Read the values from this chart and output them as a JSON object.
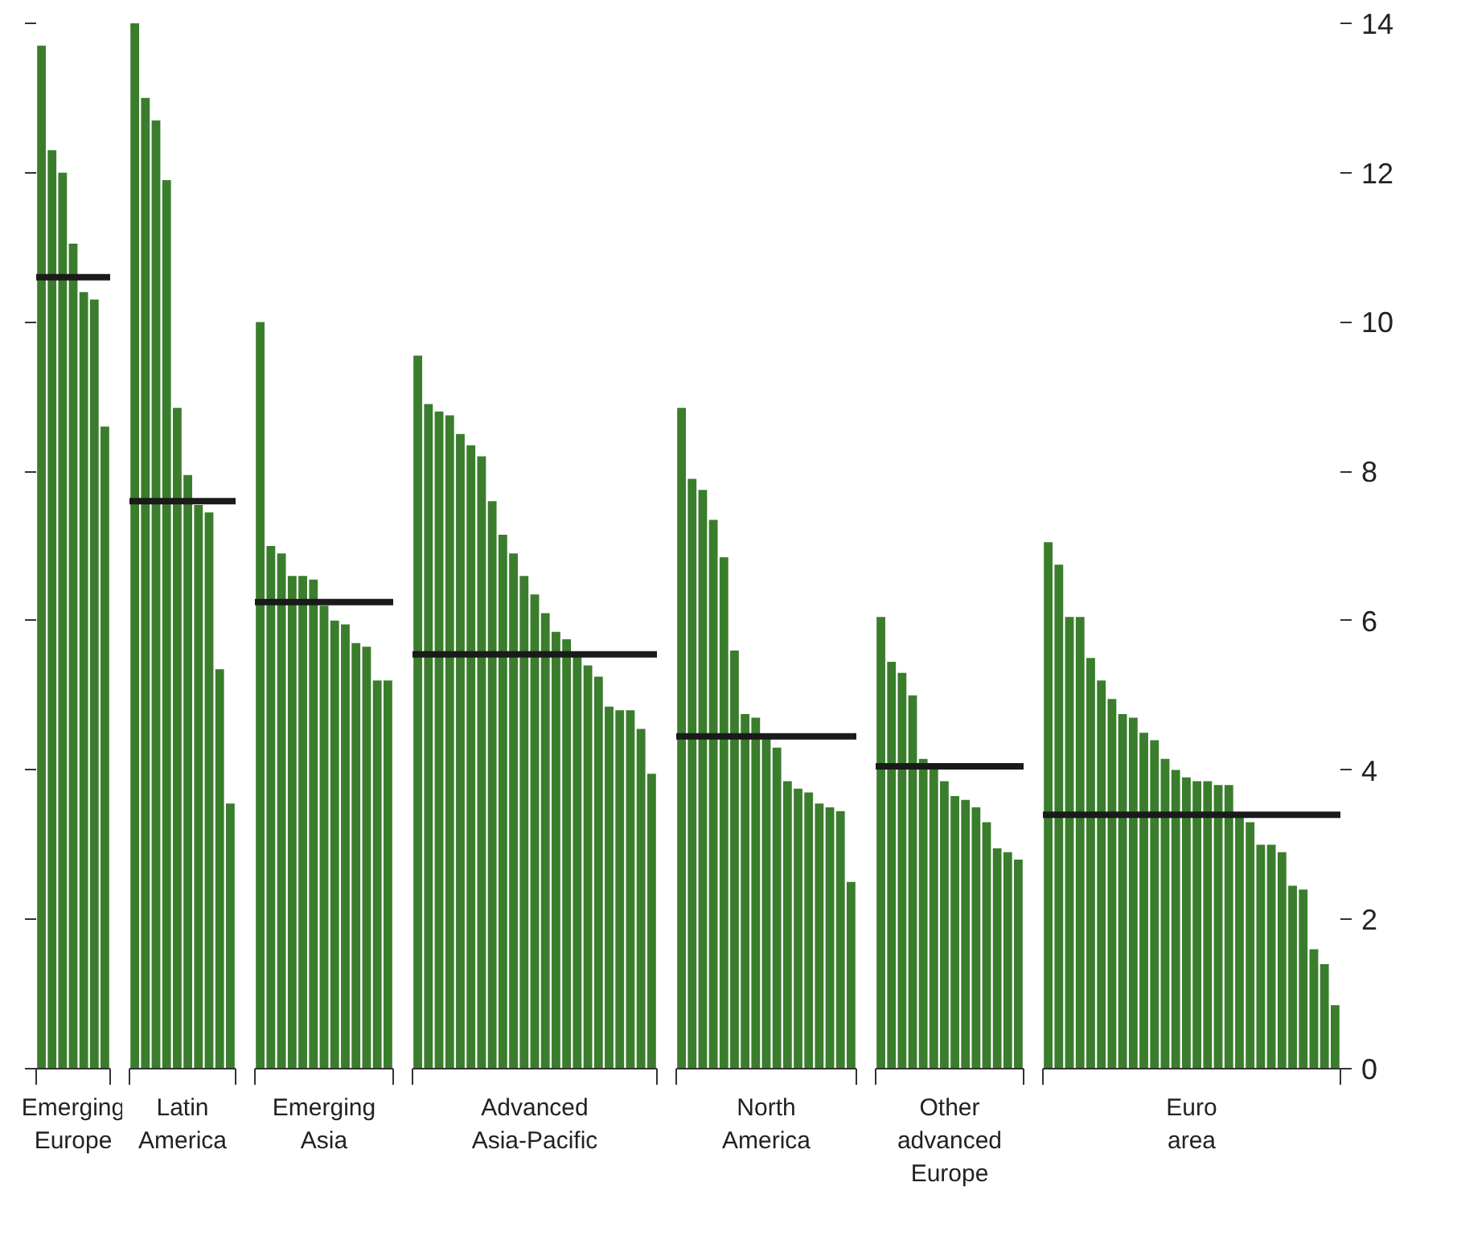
{
  "chart_data": [
    {
      "type": "bar",
      "xlabel": "Emerging\nEurope",
      "color": "#3a7d2c",
      "ylim": [
        0,
        14
      ],
      "yticks": [
        0,
        2,
        4,
        6,
        8,
        10,
        12,
        14
      ],
      "tick_labels": false,
      "categories": [
        null,
        null,
        null,
        null,
        null,
        null,
        null
      ],
      "values": [
        13.7,
        12.3,
        12.0,
        11.05,
        10.4,
        10.3,
        8.6
      ],
      "ref_lines": [
        {
          "axis": "y",
          "value": 10.6,
          "color": "#1a1a1a"
        }
      ]
    },
    {
      "type": "bar",
      "xlabel": "Latin\nAmerica",
      "color": "#3a7d2c",
      "ylim": [
        0,
        14
      ],
      "yticks": [
        0,
        2,
        4,
        6,
        8,
        10,
        12,
        14
      ],
      "tick_labels": false,
      "categories": [
        null,
        null,
        null,
        null,
        null,
        null,
        null,
        null,
        null,
        null
      ],
      "values": [
        14.0,
        13.0,
        12.7,
        11.9,
        8.85,
        7.95,
        7.55,
        7.45,
        5.35,
        3.55
      ],
      "ref_lines": [
        {
          "axis": "y",
          "value": 7.6,
          "color": "#1a1a1a"
        }
      ]
    },
    {
      "type": "bar",
      "xlabel": "Emerging\nAsia",
      "color": "#3a7d2c",
      "ylim": [
        0,
        14
      ],
      "yticks": [
        0,
        2,
        4,
        6,
        8,
        10,
        12,
        14
      ],
      "tick_labels": false,
      "categories": [
        null,
        null,
        null,
        null,
        null,
        null,
        null,
        null,
        null,
        null,
        null,
        null,
        null
      ],
      "values": [
        10.0,
        7.0,
        6.9,
        6.6,
        6.6,
        6.55,
        6.2,
        6.0,
        5.95,
        5.7,
        5.65,
        5.2,
        5.2
      ],
      "ref_lines": [
        {
          "axis": "y",
          "value": 6.25,
          "color": "#1a1a1a"
        }
      ]
    },
    {
      "type": "bar",
      "xlabel": "Advanced\nAsia-Pacific",
      "color": "#3a7d2c",
      "ylim": [
        0,
        14
      ],
      "yticks": [
        0,
        2,
        4,
        6,
        8,
        10,
        12,
        14
      ],
      "tick_labels": false,
      "categories": [
        null,
        null,
        null,
        null,
        null,
        null,
        null,
        null,
        null,
        null,
        null,
        null,
        null,
        null,
        null,
        null,
        null,
        null,
        null,
        null,
        null,
        null,
        null
      ],
      "values": [
        9.55,
        8.9,
        8.8,
        8.75,
        8.5,
        8.35,
        8.2,
        7.6,
        7.15,
        6.9,
        6.6,
        6.35,
        6.1,
        5.85,
        5.75,
        5.55,
        5.4,
        5.25,
        4.85,
        4.8,
        4.8,
        4.55,
        3.95
      ],
      "ref_lines": [
        {
          "axis": "y",
          "value": 5.55,
          "color": "#1a1a1a"
        }
      ]
    },
    {
      "type": "bar",
      "xlabel": "North\nAmerica",
      "color": "#3a7d2c",
      "ylim": [
        0,
        14
      ],
      "yticks": [
        0,
        2,
        4,
        6,
        8,
        10,
        12,
        14
      ],
      "tick_labels": false,
      "categories": [
        null,
        null,
        null,
        null,
        null,
        null,
        null,
        null,
        null,
        null,
        null,
        null,
        null,
        null,
        null,
        null,
        null
      ],
      "values": [
        8.85,
        7.9,
        7.75,
        7.35,
        6.85,
        5.6,
        4.75,
        4.7,
        4.45,
        4.3,
        3.85,
        3.75,
        3.7,
        3.55,
        3.5,
        3.45,
        2.5
      ],
      "ref_lines": [
        {
          "axis": "y",
          "value": 4.45,
          "color": "#1a1a1a"
        }
      ]
    },
    {
      "type": "bar",
      "xlabel": "Other\nadvanced\nEurope",
      "color": "#3a7d2c",
      "ylim": [
        0,
        14
      ],
      "yticks": [
        0,
        2,
        4,
        6,
        8,
        10,
        12,
        14
      ],
      "tick_labels": false,
      "categories": [
        null,
        null,
        null,
        null,
        null,
        null,
        null,
        null,
        null,
        null,
        null,
        null,
        null,
        null
      ],
      "values": [
        6.05,
        5.45,
        5.3,
        5.0,
        4.15,
        4.05,
        3.85,
        3.65,
        3.6,
        3.5,
        3.3,
        2.95,
        2.9,
        2.8
      ],
      "ref_lines": [
        {
          "axis": "y",
          "value": 4.05,
          "color": "#1a1a1a"
        }
      ]
    },
    {
      "type": "bar",
      "xlabel": "Euro\narea",
      "color": "#3a7d2c",
      "ylim": [
        0,
        14
      ],
      "yticks": [
        0,
        2,
        4,
        6,
        8,
        10,
        12,
        14
      ],
      "tick_labels": "y",
      "categories": [
        null,
        null,
        null,
        null,
        null,
        null,
        null,
        null,
        null,
        null,
        null,
        null,
        null,
        null,
        null,
        null,
        null,
        null,
        null,
        null,
        null,
        null,
        null,
        null,
        null,
        null,
        null,
        null
      ],
      "values": [
        7.05,
        6.75,
        6.05,
        6.05,
        5.5,
        5.2,
        4.95,
        4.75,
        4.7,
        4.5,
        4.4,
        4.15,
        4.0,
        3.9,
        3.85,
        3.85,
        3.8,
        3.8,
        3.4,
        3.3,
        3.0,
        3.0,
        2.9,
        2.45,
        2.4,
        1.6,
        1.4,
        0.85
      ],
      "ref_lines": [
        {
          "axis": "y",
          "value": 3.4,
          "color": "#1a1a1a"
        }
      ]
    }
  ]
}
